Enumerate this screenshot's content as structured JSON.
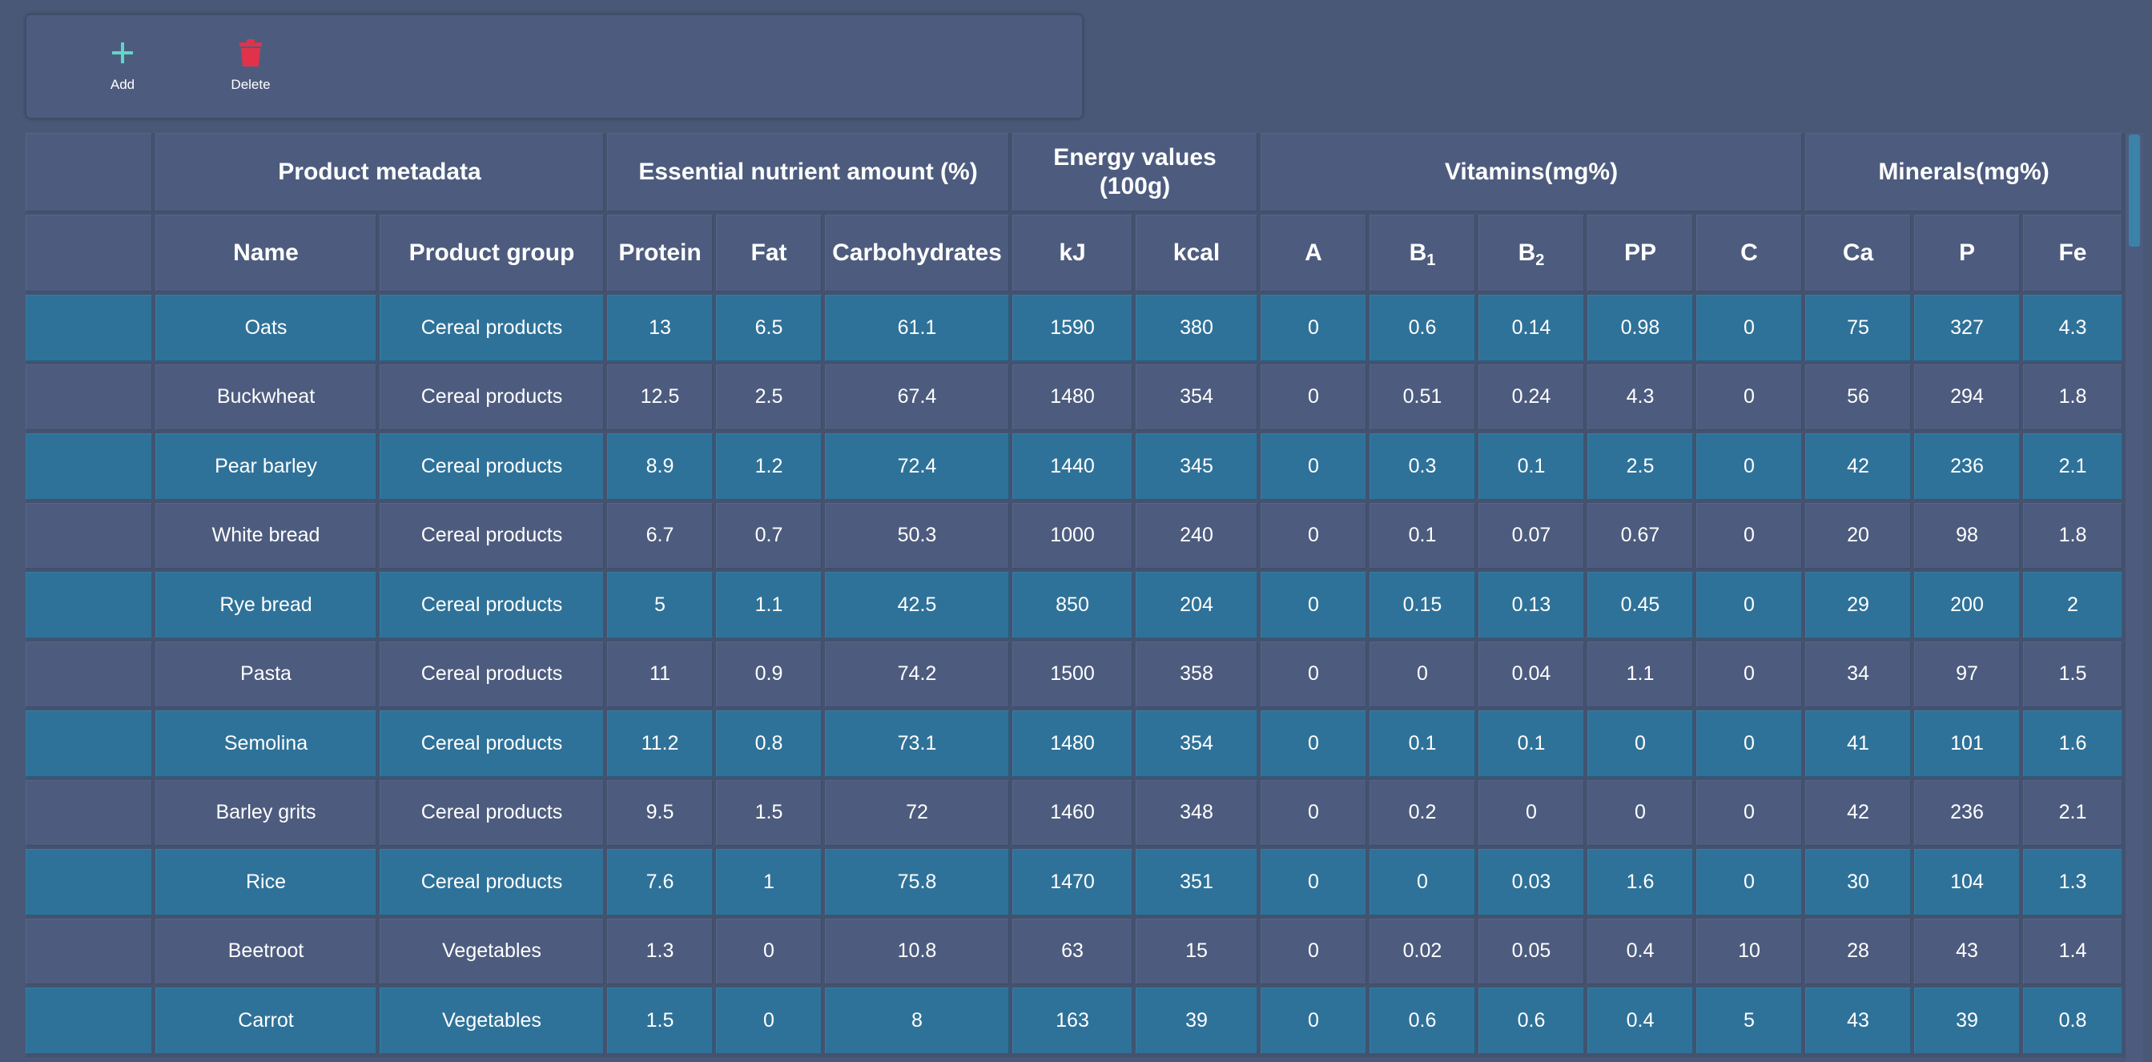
{
  "toolbar": {
    "add_label": "Add",
    "delete_label": "Delete",
    "add_icon": "plus-icon",
    "delete_icon": "trash-icon",
    "add_color": "#5fd6c8",
    "delete_color": "#e0334a"
  },
  "table": {
    "groups": {
      "metadata": "Product metadata",
      "nutrients": "Essential nutrient amount (%)",
      "energy_line1": "Energy values",
      "energy_line2": "(100g)",
      "vitamins": "Vitamins(mg%)",
      "minerals": "Minerals(mg%)"
    },
    "columns": {
      "name": "Name",
      "group": "Product group",
      "protein": "Protein",
      "fat": "Fat",
      "carbs": "Carbohydrates",
      "kj": "kJ",
      "kcal": "kcal",
      "a": "A",
      "b1_base": "B",
      "b1_sub": "1",
      "b2_base": "B",
      "b2_sub": "2",
      "pp": "PP",
      "c": "C",
      "ca": "Ca",
      "p": "P",
      "fe": "Fe"
    },
    "rows": [
      [
        "Oats",
        "Cereal products",
        "13",
        "6.5",
        "61.1",
        "1590",
        "380",
        "0",
        "0.6",
        "0.14",
        "0.98",
        "0",
        "75",
        "327",
        "4.3"
      ],
      [
        "Buckwheat",
        "Cereal products",
        "12.5",
        "2.5",
        "67.4",
        "1480",
        "354",
        "0",
        "0.51",
        "0.24",
        "4.3",
        "0",
        "56",
        "294",
        "1.8"
      ],
      [
        "Pear barley",
        "Cereal products",
        "8.9",
        "1.2",
        "72.4",
        "1440",
        "345",
        "0",
        "0.3",
        "0.1",
        "2.5",
        "0",
        "42",
        "236",
        "2.1"
      ],
      [
        "White bread",
        "Cereal products",
        "6.7",
        "0.7",
        "50.3",
        "1000",
        "240",
        "0",
        "0.1",
        "0.07",
        "0.67",
        "0",
        "20",
        "98",
        "1.8"
      ],
      [
        "Rye bread",
        "Cereal products",
        "5",
        "1.1",
        "42.5",
        "850",
        "204",
        "0",
        "0.15",
        "0.13",
        "0.45",
        "0",
        "29",
        "200",
        "2"
      ],
      [
        "Pasta",
        "Cereal products",
        "11",
        "0.9",
        "74.2",
        "1500",
        "358",
        "0",
        "0",
        "0.04",
        "1.1",
        "0",
        "34",
        "97",
        "1.5"
      ],
      [
        "Semolina",
        "Cereal products",
        "11.2",
        "0.8",
        "73.1",
        "1480",
        "354",
        "0",
        "0.1",
        "0.1",
        "0",
        "0",
        "41",
        "101",
        "1.6"
      ],
      [
        "Barley grits",
        "Cereal products",
        "9.5",
        "1.5",
        "72",
        "1460",
        "348",
        "0",
        "0.2",
        "0",
        "0",
        "0",
        "42",
        "236",
        "2.1"
      ],
      [
        "Rice",
        "Cereal products",
        "7.6",
        "1",
        "75.8",
        "1470",
        "351",
        "0",
        "0",
        "0.03",
        "1.6",
        "0",
        "30",
        "104",
        "1.3"
      ],
      [
        "Beetroot",
        "Vegetables",
        "1.3",
        "0",
        "10.8",
        "63",
        "15",
        "0",
        "0.02",
        "0.05",
        "0.4",
        "10",
        "28",
        "43",
        "1.4"
      ],
      [
        "Carrot",
        "Vegetables",
        "1.5",
        "0",
        "8",
        "163",
        "39",
        "0",
        "0.6",
        "0.6",
        "0.4",
        "5",
        "43",
        "39",
        "0.8"
      ]
    ]
  }
}
